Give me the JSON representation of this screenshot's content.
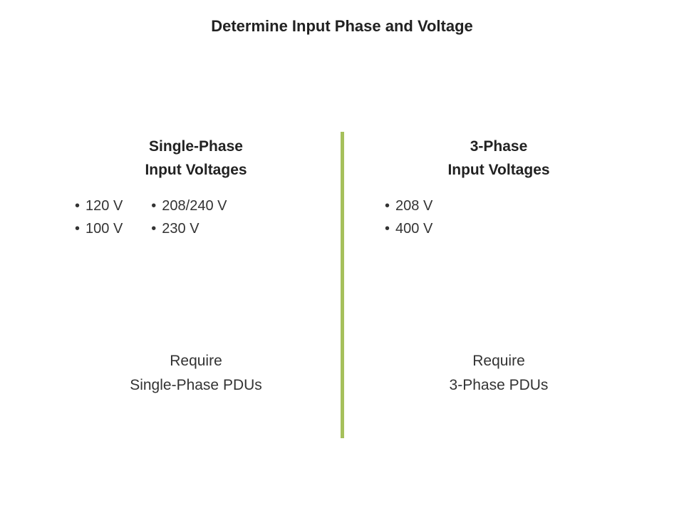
{
  "title": "Determine Input Phase and Voltage",
  "divider_color": "#a6c05b",
  "background_color": "#ffffff",
  "text_color": "#333333",
  "heading_color": "#222222",
  "title_fontsize": 22,
  "heading_fontsize": 21,
  "body_fontsize": 20,
  "left": {
    "heading_line1": "Single-Phase",
    "heading_line2": "Input Voltages",
    "voltages_col1": [
      "120 V",
      "100 V"
    ],
    "voltages_col2": [
      "208/240 V",
      "230 V"
    ],
    "requirement_line1": "Require",
    "requirement_line2": "Single-Phase PDUs"
  },
  "right": {
    "heading_line1": "3-Phase",
    "heading_line2": "Input Voltages",
    "voltages": [
      "208 V",
      "400 V"
    ],
    "requirement_line1": "Require",
    "requirement_line2": "3-Phase PDUs"
  }
}
